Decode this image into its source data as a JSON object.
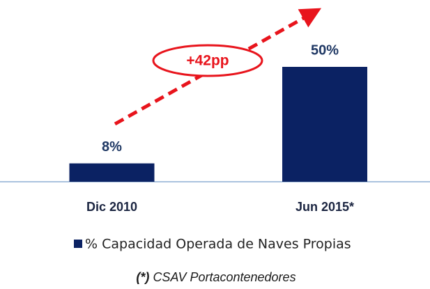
{
  "chart_data": {
    "type": "bar",
    "categories": [
      "Dic 2010",
      "Jun 2015*"
    ],
    "series": [
      {
        "name": "% Capacidad Operada de Naves Propias",
        "color": "#0b2263",
        "values": [
          8,
          50
        ],
        "value_labels": [
          "8%",
          "50%"
        ]
      }
    ],
    "annotation": "+42pp",
    "footnote_marker": "(*)",
    "footnote": "CSAV Portacontenedores"
  }
}
